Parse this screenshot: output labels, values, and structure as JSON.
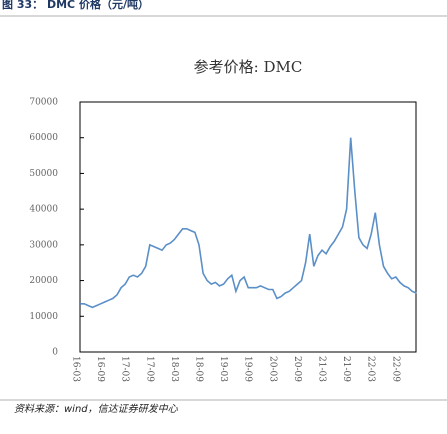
{
  "header": "图 33： DMC 价格（元/吨）",
  "source": "资料来源：wind，信达证券研发中心",
  "chart_data": {
    "type": "line",
    "title": "参考价格: DMC",
    "categories": [
      "16-03",
      null,
      null,
      null,
      null,
      null,
      "16-09",
      null,
      null,
      null,
      null,
      null,
      "17-03",
      null,
      null,
      null,
      null,
      null,
      "17-09",
      null,
      null,
      null,
      null,
      null,
      "18-03",
      null,
      null,
      null,
      null,
      null,
      "18-09",
      null,
      null,
      null,
      null,
      null,
      "19-03",
      null,
      null,
      null,
      null,
      null,
      "19-09",
      null,
      null,
      null,
      null,
      null,
      "20-03",
      null,
      null,
      null,
      null,
      null,
      "20-09",
      null,
      null,
      null,
      null,
      null,
      "21-03",
      null,
      null,
      null,
      null,
      null,
      "21-09",
      null,
      null,
      null,
      null,
      null,
      "22-03",
      null,
      null,
      null,
      null,
      null,
      "22-09",
      null,
      null,
      null,
      null,
      null
    ],
    "series": [
      {
        "name": "参考价格: DMC",
        "color": "#5b8fc7",
        "values": [
          null,
          13500,
          13500,
          13000,
          12500,
          13000,
          13500,
          14000,
          14500,
          15000,
          16000,
          18000,
          19000,
          21000,
          21500,
          21000,
          22000,
          24000,
          30000,
          29500,
          29000,
          28500,
          30000,
          30500,
          31500,
          33000,
          34500,
          34500,
          34000,
          33500,
          30000,
          22000,
          20000,
          19000,
          19500,
          18500,
          19000,
          20500,
          21500,
          17000,
          20000,
          21000,
          18000,
          18000,
          18000,
          18500,
          18000,
          17500,
          17500,
          15000,
          15500,
          16500,
          17000,
          18000,
          19000,
          20000,
          25000,
          33000,
          24000,
          27000,
          28500,
          27500,
          29500,
          31000,
          33000,
          35000,
          40000,
          60000,
          45000,
          32000,
          30000,
          29000,
          33000,
          39000,
          30000,
          24000,
          22000,
          20500,
          21000,
          19500,
          18500,
          18000,
          17000,
          16500
        ]
      }
    ],
    "ylim": [
      0,
      70000
    ],
    "yticks": [
      0,
      10000,
      20000,
      30000,
      40000,
      50000,
      60000,
      70000
    ]
  }
}
